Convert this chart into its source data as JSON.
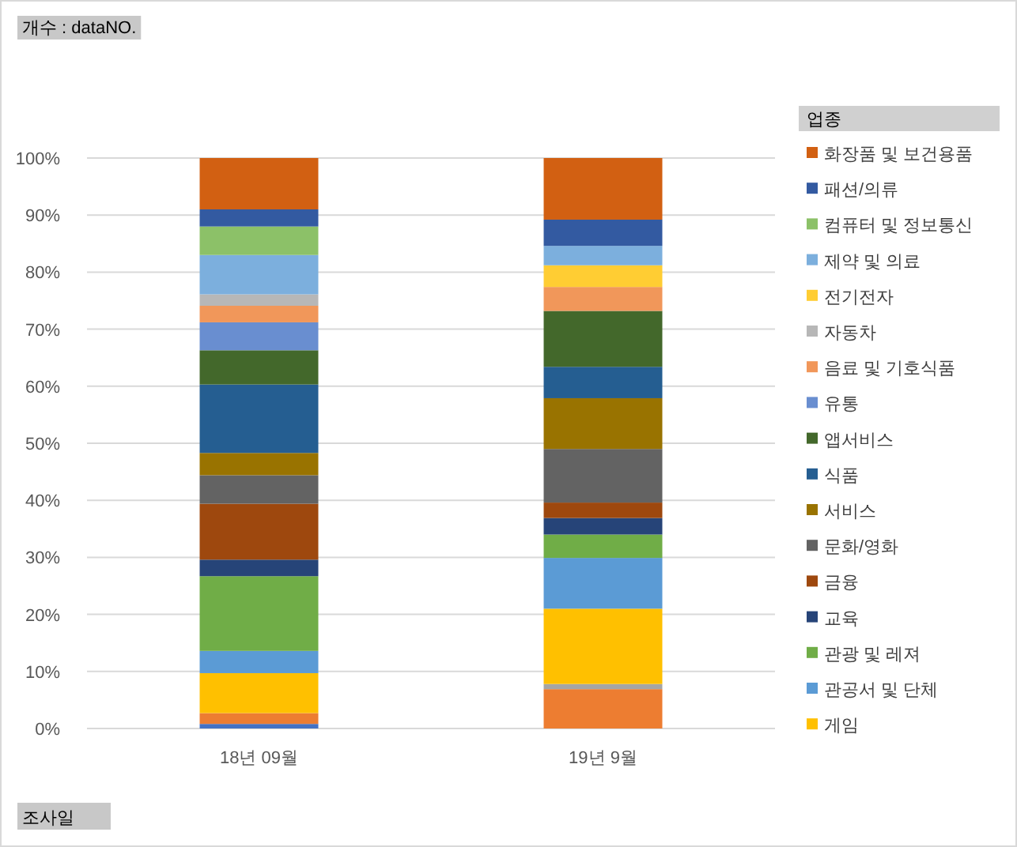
{
  "chart_data": {
    "type": "bar",
    "stacked": true,
    "title": "개수 : dataNO.",
    "xlabel": "조사일",
    "legend_title": "업종",
    "legend": "right",
    "grid": "y",
    "categories": [
      "18년 09월",
      "19년 9월"
    ],
    "ylim": [
      0,
      100
    ],
    "yticks": [
      {
        "value": 0,
        "label": "0%"
      },
      {
        "value": 10,
        "label": "10%"
      },
      {
        "value": 20,
        "label": "20%"
      },
      {
        "value": 30,
        "label": "30%"
      },
      {
        "value": 40,
        "label": "40%"
      },
      {
        "value": 50,
        "label": "50%"
      },
      {
        "value": 60,
        "label": "60%"
      },
      {
        "value": 70,
        "label": "70%"
      },
      {
        "value": 80,
        "label": "80%"
      },
      {
        "value": 90,
        "label": "90%"
      },
      {
        "value": 100,
        "label": "100%"
      }
    ],
    "series": [
      {
        "color": "#4472c4",
        "values": [
          0.8,
          0
        ]
      },
      {
        "color": "#ed7d31",
        "values": [
          1.9,
          6.9
        ]
      },
      {
        "color": "#a5a5a5",
        "values": [
          0,
          0.9
        ]
      },
      {
        "name": "게임",
        "color": "#ffc000",
        "values": [
          7.0,
          13.2
        ]
      },
      {
        "name": "관공서 및 단체",
        "color": "#5b9bd5",
        "values": [
          3.9,
          8.9
        ]
      },
      {
        "name": "관광 및 레져",
        "color": "#70ad47",
        "values": [
          13.1,
          4.1
        ]
      },
      {
        "name": "교육",
        "color": "#264478",
        "values": [
          2.9,
          2.9
        ]
      },
      {
        "name": "금융",
        "color": "#9e480e",
        "values": [
          9.8,
          2.7
        ]
      },
      {
        "name": "문화/영화",
        "color": "#636363",
        "values": [
          5.0,
          9.4
        ]
      },
      {
        "name": "서비스",
        "color": "#997300",
        "values": [
          3.9,
          8.9
        ]
      },
      {
        "name": "식품",
        "color": "#255e91",
        "values": [
          12.0,
          5.5
        ]
      },
      {
        "name": "앱서비스",
        "color": "#43682b",
        "values": [
          6.0,
          9.8
        ]
      },
      {
        "name": "유통",
        "color": "#698ed0",
        "values": [
          4.9,
          0
        ]
      },
      {
        "name": "음료 및 기호식품",
        "color": "#f1975a",
        "values": [
          2.9,
          4.2
        ]
      },
      {
        "name": "자동차",
        "color": "#b7b7b7",
        "values": [
          2.0,
          0
        ]
      },
      {
        "name": "전기전자",
        "color": "#ffcd33",
        "values": [
          0,
          3.8
        ]
      },
      {
        "name": "제약 및 의료",
        "color": "#7cafdd",
        "values": [
          6.9,
          3.4
        ]
      },
      {
        "name": "컴퓨터 및 정보통신",
        "color": "#8cc168",
        "values": [
          5.0,
          0
        ]
      },
      {
        "name": "패션/의류",
        "color": "#335aa1",
        "values": [
          3.0,
          4.6
        ]
      },
      {
        "name": "화장품 및 보건용품",
        "color": "#d26012",
        "values": [
          9.0,
          10.8
        ]
      }
    ]
  }
}
